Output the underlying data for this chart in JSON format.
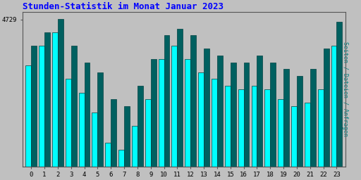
{
  "title": "Stunden-Statistik im Monat Januar 2023",
  "title_color": "#0000FF",
  "title_fontsize": 9,
  "xlabel_categories": [
    "0",
    "1",
    "2",
    "3",
    "4",
    "5",
    "6",
    "7",
    "8",
    "9",
    "10",
    "11",
    "12",
    "13",
    "14",
    "15",
    "16",
    "17",
    "18",
    "19",
    "20",
    "21",
    "22",
    "23"
  ],
  "ylabel": "Seiten / Dateien / Anfragen",
  "ylabel_color": "#008080",
  "ylabel_fontsize": 6,
  "ymax_label": "4729",
  "background_color": "#c0c0c0",
  "plot_bg_color": "#c0c0c0",
  "bar_color_cyan": "#00FFFF",
  "bar_color_teal": "#006060",
  "bar_edge_color": "#004040",
  "bar_width": 0.42,
  "cyan_values": [
    4660,
    4690,
    4710,
    4640,
    4620,
    4590,
    4545,
    4535,
    4570,
    4610,
    4670,
    4690,
    4670,
    4650,
    4640,
    4630,
    4625,
    4630,
    4625,
    4610,
    4600,
    4605,
    4625,
    4690
  ],
  "teal_values": [
    4690,
    4710,
    4729,
    4690,
    4665,
    4650,
    4610,
    4600,
    4630,
    4670,
    4705,
    4715,
    4705,
    4685,
    4675,
    4665,
    4665,
    4675,
    4665,
    4655,
    4645,
    4655,
    4685,
    4725
  ],
  "ymin": 4510,
  "ymax": 4740,
  "figsize": [
    5.12,
    2.56
  ],
  "dpi": 100
}
